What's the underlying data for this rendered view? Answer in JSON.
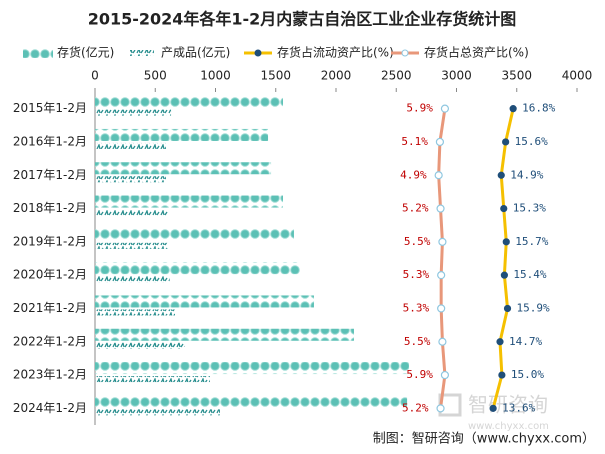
{
  "chart_data": {
    "type": "bar",
    "title": "2015-2024年各年1-2月内蒙古自治区工业企业存货统计图",
    "categories": [
      "2015年1-2月",
      "2016年1-2月",
      "2017年1-2月",
      "2018年1-2月",
      "2019年1-2月",
      "2020年1-2月",
      "2021年1-2月",
      "2022年1-2月",
      "2023年1-2月",
      "2024年1-2月"
    ],
    "xlim": [
      0,
      4000
    ],
    "xticks": [
      0,
      500,
      1000,
      1500,
      2000,
      2500,
      3000,
      3500,
      4000
    ],
    "x2lim": [
      -50,
      27
    ],
    "series": [
      {
        "name": "存货(亿元)",
        "color": "#5cc0b5",
        "values": [
          1560,
          1436,
          1461,
          1560,
          1651,
          1701,
          1817,
          2149,
          2606,
          2590
        ]
      },
      {
        "name": "产成品(亿元)",
        "color": "#2a8f8f",
        "values": [
          631,
          589,
          589,
          606,
          606,
          620,
          664,
          747,
          954,
          1037
        ]
      },
      {
        "name": "存货占流动资产比(%)",
        "color": "#f5c000",
        "marker_color": "#1f4e79",
        "axis": "x2",
        "values": [
          16.8,
          15.6,
          14.9,
          15.3,
          15.7,
          15.4,
          15.9,
          14.7,
          15.0,
          13.6
        ],
        "value_labels": [
          "16.8%",
          "15.6%",
          "14.9%",
          "15.3%",
          "15.7%",
          "15.4%",
          "15.9%",
          "14.7%",
          "15.0%",
          "13.6%"
        ]
      },
      {
        "name": "存货占总资产比(%)",
        "color": "#e8977a",
        "marker_color": "#8fc7e0",
        "axis": "x2",
        "values": [
          5.9,
          5.1,
          4.9,
          5.2,
          5.5,
          5.3,
          5.3,
          5.5,
          5.9,
          5.2
        ],
        "value_labels": [
          "5.9%",
          "5.1%",
          "4.9%",
          "5.2%",
          "5.5%",
          "5.3%",
          "5.3%",
          "5.5%",
          "5.9%",
          "5.2%"
        ]
      }
    ],
    "source": "制图：智研咨询（www.chyxx.com）",
    "watermark": "智研咨询",
    "watermark_url": "www.chyxx.com"
  }
}
